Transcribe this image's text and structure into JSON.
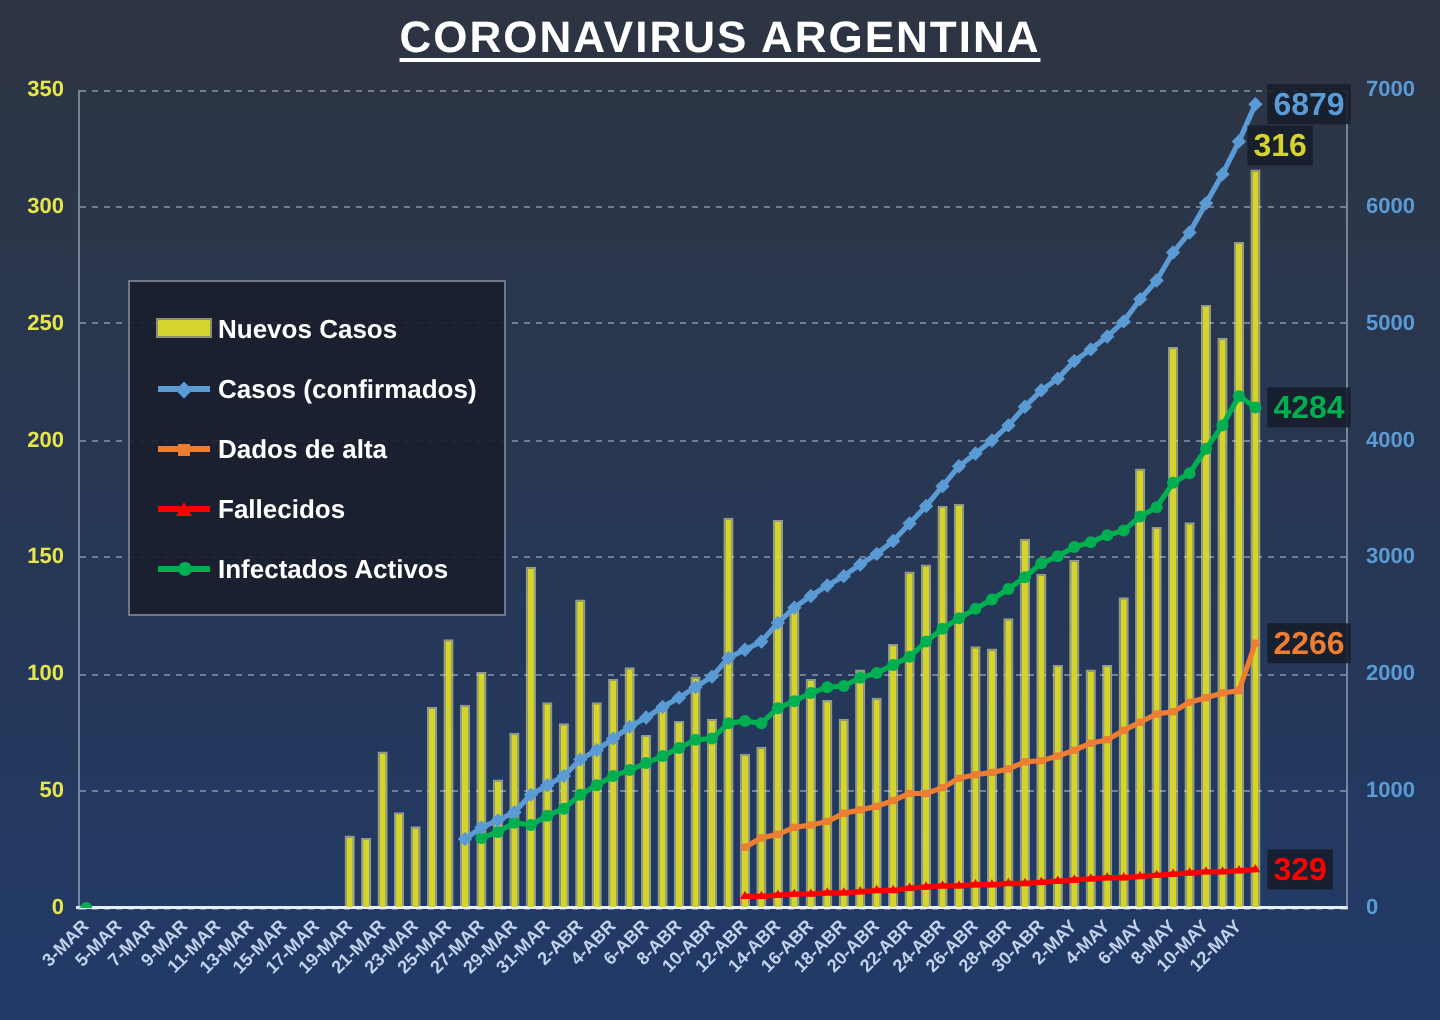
{
  "chart_data": {
    "type": "bar",
    "title": "CORONAVIRUS ARGENTINA",
    "categories": [
      "3-MAR",
      null,
      "5-MAR",
      null,
      "7-MAR",
      null,
      "9-MAR",
      null,
      "11-MAR",
      null,
      "13-MAR",
      null,
      "15-MAR",
      null,
      "17-MAR",
      null,
      "19-MAR",
      null,
      "21-MAR",
      null,
      "23-MAR",
      null,
      "25-MAR",
      null,
      "27-MAR",
      null,
      "29-MAR",
      null,
      "31-MAR",
      null,
      "2-ABR",
      null,
      "4-ABR",
      null,
      "6-ABR",
      null,
      "8-ABR",
      null,
      "10-ABR",
      null,
      "12-ABR",
      null,
      "14-ABR",
      null,
      "16-ABR",
      null,
      "18-ABR",
      null,
      "20-ABR",
      null,
      "22-ABR",
      null,
      "24-ABR",
      null,
      "26-ABR",
      null,
      "28-ABR",
      null,
      "30-ABR",
      null,
      "2-MAY",
      null,
      "4-MAY",
      null,
      "6-MAY",
      null,
      "8-MAY",
      null,
      "10-MAY",
      null,
      "12-MAY",
      null,
      null,
      null,
      null,
      null,
      null
    ],
    "series": [
      {
        "name": "Nuevos Casos",
        "color": "#d4d42c",
        "values": [
          null,
          null,
          null,
          null,
          null,
          null,
          null,
          null,
          null,
          null,
          null,
          null,
          null,
          null,
          null,
          null,
          31,
          30,
          67,
          41,
          35,
          86,
          115,
          87,
          101,
          55,
          75,
          146,
          88,
          79,
          132,
          88,
          98,
          103,
          74,
          87,
          80,
          99,
          81,
          167,
          66,
          69,
          166,
          128,
          98,
          89,
          81,
          102,
          90,
          113,
          144,
          147,
          172,
          173,
          112,
          111,
          124,
          158,
          143,
          104,
          149,
          102,
          104,
          133,
          188,
          163,
          240,
          165,
          258,
          244,
          285,
          316,
          null,
          null,
          null,
          null,
          null
        ],
        "value_labels": [
          null,
          null,
          null,
          null,
          null,
          null,
          null,
          null,
          null,
          null,
          null,
          null,
          null,
          null,
          null,
          null,
          null,
          null,
          null,
          null,
          null,
          null,
          null,
          null,
          null,
          null,
          null,
          null,
          null,
          null,
          null,
          null,
          null,
          null,
          null,
          null,
          null,
          null,
          null,
          null,
          null,
          null,
          null,
          null,
          null,
          null,
          null,
          null,
          null,
          null,
          null,
          null,
          null,
          null,
          null,
          null,
          null,
          null,
          null,
          null,
          null,
          null,
          null,
          null,
          null,
          null,
          null,
          null,
          null,
          null,
          null,
          "316",
          null,
          null,
          null,
          null,
          null
        ]
      },
      {
        "name": "Casos (confirmados)",
        "type": "line",
        "axis": "y2",
        "marker": "diamond",
        "color": "#5b9bd5",
        "values": [
          null,
          null,
          null,
          null,
          null,
          null,
          null,
          null,
          null,
          null,
          null,
          null,
          null,
          null,
          null,
          null,
          null,
          null,
          null,
          null,
          null,
          null,
          null,
          590,
          690,
          750,
          820,
          970,
          1050,
          1130,
          1270,
          1350,
          1450,
          1550,
          1630,
          1720,
          1800,
          1890,
          1980,
          2140,
          2210,
          2280,
          2440,
          2570,
          2670,
          2760,
          2840,
          2940,
          3030,
          3140,
          3290,
          3440,
          3610,
          3780,
          3890,
          4000,
          4130,
          4290,
          4430,
          4530,
          4680,
          4780,
          4890,
          5020,
          5210,
          5370,
          5610,
          5780,
          6030,
          6280,
          6560,
          6879,
          null,
          null,
          null,
          null,
          null
        ],
        "value_labels": [
          null,
          null,
          null,
          null,
          null,
          null,
          null,
          null,
          null,
          null,
          null,
          null,
          null,
          null,
          null,
          null,
          null,
          null,
          null,
          null,
          null,
          null,
          null,
          null,
          null,
          null,
          null,
          null,
          null,
          null,
          null,
          null,
          null,
          null,
          null,
          null,
          null,
          null,
          null,
          null,
          null,
          null,
          null,
          null,
          null,
          null,
          null,
          null,
          null,
          null,
          null,
          null,
          null,
          null,
          null,
          null,
          null,
          null,
          null,
          null,
          null,
          null,
          null,
          null,
          null,
          null,
          null,
          null,
          null,
          null,
          null,
          "6879",
          null,
          null,
          null,
          null,
          null
        ]
      },
      {
        "name": "Dados de alta",
        "type": "line",
        "axis": "y2",
        "marker": "square",
        "color": "#ed7d31",
        "values": [
          null,
          null,
          null,
          null,
          null,
          null,
          null,
          null,
          null,
          null,
          null,
          null,
          null,
          null,
          null,
          null,
          null,
          null,
          null,
          null,
          null,
          null,
          null,
          null,
          null,
          null,
          null,
          null,
          null,
          null,
          null,
          null,
          null,
          null,
          null,
          null,
          null,
          null,
          null,
          null,
          520,
          600,
          630,
          690,
          710,
          740,
          810,
          840,
          870,
          920,
          980,
          980,
          1030,
          1110,
          1140,
          1160,
          1190,
          1250,
          1260,
          1300,
          1350,
          1410,
          1440,
          1520,
          1590,
          1660,
          1680,
          1760,
          1800,
          1840,
          1860,
          2266,
          null,
          null,
          null,
          null,
          null
        ],
        "value_labels": [
          null,
          null,
          null,
          null,
          null,
          null,
          null,
          null,
          null,
          null,
          null,
          null,
          null,
          null,
          null,
          null,
          null,
          null,
          null,
          null,
          null,
          null,
          null,
          null,
          null,
          null,
          null,
          null,
          null,
          null,
          null,
          null,
          null,
          null,
          null,
          null,
          null,
          null,
          null,
          null,
          null,
          null,
          null,
          null,
          null,
          null,
          null,
          null,
          null,
          null,
          null,
          null,
          null,
          null,
          null,
          null,
          null,
          null,
          null,
          null,
          null,
          null,
          null,
          null,
          null,
          null,
          null,
          null,
          null,
          null,
          null,
          "2266",
          null,
          null,
          null,
          null,
          null
        ]
      },
      {
        "name": "Fallecidos",
        "type": "line",
        "axis": "y2",
        "marker": "triangle",
        "color": "#ff0000",
        "values": [
          null,
          null,
          null,
          null,
          null,
          null,
          null,
          null,
          null,
          null,
          null,
          null,
          null,
          null,
          null,
          null,
          null,
          null,
          null,
          null,
          null,
          null,
          null,
          null,
          null,
          null,
          null,
          null,
          null,
          null,
          null,
          null,
          null,
          null,
          null,
          null,
          null,
          null,
          null,
          null,
          100,
          100,
          110,
          120,
          120,
          130,
          130,
          140,
          150,
          150,
          170,
          180,
          190,
          190,
          200,
          200,
          210,
          210,
          220,
          230,
          240,
          250,
          260,
          260,
          270,
          280,
          290,
          300,
          310,
          310,
          320,
          329,
          null,
          null,
          null,
          null,
          null
        ],
        "value_labels": [
          null,
          null,
          null,
          null,
          null,
          null,
          null,
          null,
          null,
          null,
          null,
          null,
          null,
          null,
          null,
          null,
          null,
          null,
          null,
          null,
          null,
          null,
          null,
          null,
          null,
          null,
          null,
          null,
          null,
          null,
          null,
          null,
          null,
          null,
          null,
          null,
          null,
          null,
          null,
          null,
          null,
          null,
          null,
          null,
          null,
          null,
          null,
          null,
          null,
          null,
          null,
          null,
          null,
          null,
          null,
          null,
          null,
          null,
          null,
          null,
          null,
          null,
          null,
          null,
          null,
          null,
          null,
          null,
          null,
          null,
          null,
          "329",
          null,
          null,
          null,
          null,
          null
        ]
      },
      {
        "name": "Infectados Activos",
        "type": "line",
        "axis": "y2",
        "marker": "circle",
        "color": "#00b050",
        "values": [
          0,
          null,
          null,
          null,
          null,
          null,
          null,
          null,
          null,
          null,
          null,
          null,
          null,
          null,
          null,
          null,
          null,
          null,
          null,
          null,
          null,
          null,
          null,
          null,
          600,
          650,
          730,
          710,
          790,
          850,
          970,
          1050,
          1130,
          1180,
          1240,
          1300,
          1370,
          1440,
          1450,
          1580,
          1600,
          1580,
          1710,
          1770,
          1840,
          1890,
          1900,
          1970,
          2010,
          2080,
          2150,
          2280,
          2390,
          2480,
          2560,
          2640,
          2730,
          2830,
          2950,
          3010,
          3090,
          3130,
          3190,
          3230,
          3350,
          3430,
          3640,
          3720,
          3930,
          4130,
          4380,
          4284,
          null,
          null,
          null,
          null,
          null
        ],
        "value_labels": [
          null,
          null,
          null,
          null,
          null,
          null,
          null,
          null,
          null,
          null,
          null,
          null,
          null,
          null,
          null,
          null,
          null,
          null,
          null,
          null,
          null,
          null,
          null,
          null,
          null,
          null,
          null,
          null,
          null,
          null,
          null,
          null,
          null,
          null,
          null,
          null,
          null,
          null,
          null,
          null,
          null,
          null,
          null,
          null,
          null,
          null,
          null,
          null,
          null,
          null,
          null,
          null,
          null,
          null,
          null,
          null,
          null,
          null,
          null,
          null,
          null,
          null,
          null,
          null,
          null,
          null,
          null,
          null,
          null,
          null,
          null,
          "4284",
          null,
          null,
          null,
          null,
          null
        ]
      }
    ],
    "ylim": [
      0,
      350
    ],
    "yticks": [
      0,
      50,
      100,
      150,
      200,
      250,
      300,
      350
    ],
    "y2lim": [
      0,
      7000
    ],
    "y2ticks": [
      0,
      1000,
      2000,
      3000,
      4000,
      5000,
      6000,
      7000
    ],
    "grid": "y",
    "legend": "left"
  }
}
